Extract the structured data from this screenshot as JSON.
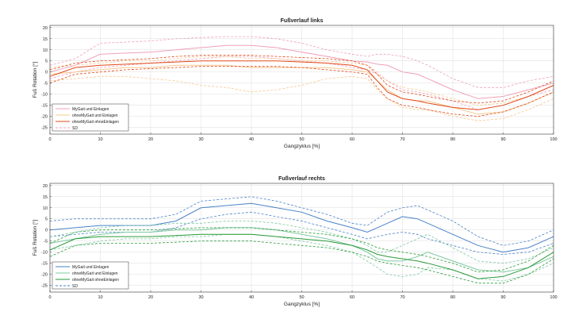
{
  "chart_data": [
    {
      "type": "line",
      "title": "Fußverlauf links",
      "xlabel": "Gangzyklus [%]",
      "ylabel": "Fuß Rotation [°]",
      "xlim": [
        0,
        100
      ],
      "ylim": [
        -28,
        21
      ],
      "xticks": [
        0,
        10,
        20,
        30,
        40,
        50,
        60,
        70,
        80,
        90,
        100
      ],
      "yticks": [
        -25,
        -20,
        -15,
        -10,
        -5,
        0,
        5,
        10,
        15,
        20
      ],
      "grid": true,
      "legend_position": "bottom-left",
      "x": [
        0,
        5,
        10,
        15,
        20,
        25,
        30,
        35,
        40,
        45,
        50,
        55,
        60,
        63,
        65,
        67,
        70,
        73,
        75,
        80,
        85,
        90,
        95,
        100
      ],
      "series": [
        {
          "name": "MyGait und Einlagen",
          "color": "#f0a0b8",
          "values": [
            0,
            3,
            8,
            8.5,
            9,
            10,
            11,
            12,
            12,
            11,
            9,
            7,
            5,
            4.5,
            3.5,
            3,
            0,
            -1,
            -3,
            -8,
            -12,
            -11,
            -8,
            -5
          ],
          "sd_upper": [
            3,
            6,
            13,
            13.5,
            14,
            15,
            15.5,
            16,
            16,
            15,
            13,
            10,
            8,
            7,
            8,
            8,
            7,
            5,
            3,
            -3,
            -7,
            -7,
            -4,
            -2
          ],
          "sd_lower": [
            -3,
            0,
            2,
            3,
            4,
            5,
            6,
            7,
            7,
            6,
            5,
            4,
            2,
            1,
            -1,
            -4,
            -8,
            -9,
            -10,
            -13,
            -17,
            -15,
            -11,
            -8
          ]
        },
        {
          "name": "ohneMyGait und Einlagen",
          "color": "#f5c890",
          "values": [
            -1,
            0,
            1,
            2,
            2,
            3,
            3,
            3,
            2,
            2,
            2,
            2,
            1,
            0,
            -4,
            -8,
            -12,
            -13,
            -13,
            -16,
            -19,
            -18,
            -14,
            -9
          ],
          "sd_upper": [
            2,
            3,
            4,
            5,
            5,
            6,
            7,
            7,
            6,
            6,
            5,
            5,
            4,
            3,
            0,
            -4,
            -7,
            -8,
            -9,
            -12,
            -15,
            -14,
            -11,
            -6
          ],
          "sd_lower": [
            -4,
            -3,
            -2,
            -2,
            -3,
            -4,
            -6,
            -7,
            -9,
            -8,
            -6,
            -3,
            -2,
            -3,
            -8,
            -12,
            -16,
            -17,
            -17,
            -20,
            -22,
            -21,
            -17,
            -12
          ]
        },
        {
          "name": "ohneMyGait ohneEinlagen",
          "color": "#e04a1a",
          "values": [
            -2,
            2,
            3,
            3.5,
            4,
            4.5,
            5,
            5,
            5,
            5,
            4.5,
            4,
            3,
            1,
            -4,
            -9,
            -12,
            -13,
            -14,
            -16,
            -17,
            -15,
            -11,
            -6
          ],
          "sd_upper": [
            1,
            4,
            5,
            5.5,
            6,
            7,
            7.5,
            7.5,
            7.5,
            7,
            6.5,
            6,
            5,
            3,
            -1,
            -6,
            -9,
            -10,
            -11,
            -13,
            -14,
            -13,
            -9,
            -4
          ],
          "sd_lower": [
            -5,
            -1,
            0,
            1,
            1.5,
            2,
            2.5,
            2.5,
            2.5,
            2.5,
            2,
            1,
            0,
            -1,
            -7,
            -12,
            -15,
            -16,
            -17,
            -19,
            -20,
            -18,
            -14,
            -9
          ]
        }
      ],
      "legend_entries": [
        "MyGait und Einlagen",
        "ohneMyGait und Einlagen",
        "ohneMyGait ohneEinlagen",
        "SD"
      ]
    },
    {
      "type": "line",
      "title": "Fußverlauf rechts",
      "xlabel": "Gangzyklus [%]",
      "ylabel": "Fuß Rotation [°]",
      "xlim": [
        0,
        100
      ],
      "ylim": [
        -28,
        21
      ],
      "xticks": [
        0,
        10,
        20,
        30,
        40,
        50,
        60,
        70,
        80,
        90,
        100
      ],
      "yticks": [
        -25,
        -20,
        -15,
        -10,
        -5,
        0,
        5,
        10,
        15,
        20
      ],
      "grid": true,
      "legend_position": "bottom-left",
      "x": [
        0,
        5,
        10,
        15,
        20,
        25,
        30,
        35,
        40,
        45,
        50,
        55,
        60,
        63,
        65,
        67,
        70,
        73,
        75,
        80,
        85,
        90,
        95,
        100
      ],
      "series": [
        {
          "name": "MyGait und Einlagen",
          "color": "#4a82c8",
          "values": [
            0,
            1,
            2,
            2,
            2,
            4,
            10,
            11,
            12,
            10,
            8,
            4,
            1,
            -1,
            1,
            3,
            6,
            5,
            3,
            -2,
            -7,
            -10,
            -8,
            -3
          ],
          "sd_upper": [
            4,
            5,
            5,
            5,
            5,
            7,
            13,
            14,
            15,
            13,
            10,
            7,
            3,
            2,
            5,
            8,
            10,
            11,
            9,
            4,
            -3,
            -7,
            -5,
            0
          ],
          "sd_lower": [
            -3,
            -2,
            -1,
            -1,
            -1,
            1,
            5,
            7,
            8,
            6,
            4,
            1,
            -2,
            -4,
            -3,
            -2,
            -1,
            -2,
            -4,
            -7,
            -10,
            -11,
            -10,
            -6
          ]
        },
        {
          "name": "ohneMyGait und Einlagen",
          "color": "#7cc8a0",
          "values": [
            -6,
            -4,
            -2,
            -1,
            -1,
            0,
            0,
            1,
            1,
            0,
            -2,
            -4,
            -7,
            -10,
            -13,
            -14,
            -14,
            -12,
            -10,
            -14,
            -18,
            -19,
            -17,
            -12
          ],
          "sd_upper": [
            -3,
            -1,
            1,
            2,
            2,
            3,
            3,
            4,
            4,
            3,
            1,
            -1,
            -4,
            -7,
            -10,
            -10,
            -7,
            -4,
            -2,
            -8,
            -14,
            -15,
            -13,
            -8
          ],
          "sd_lower": [
            -9,
            -7,
            -5,
            -4,
            -4,
            -3,
            -3,
            -2,
            -2,
            -3,
            -5,
            -7,
            -10,
            -14,
            -17,
            -20,
            -21,
            -20,
            -17,
            -18,
            -22,
            -23,
            -20,
            -15
          ]
        },
        {
          "name": "ohneMyGait ohneEinlagen",
          "color": "#2a9a3a",
          "values": [
            -9,
            -4,
            -3,
            -3,
            -3,
            -2.5,
            -2,
            -2,
            -2,
            -3,
            -4,
            -5,
            -7,
            -9,
            -11,
            -12,
            -13,
            -14,
            -15,
            -18,
            -22,
            -21,
            -17,
            -10
          ],
          "sd_upper": [
            -6,
            -1,
            0,
            0,
            0,
            0.5,
            1,
            1,
            1,
            0,
            -1,
            -2,
            -4,
            -6,
            -8,
            -9,
            -10,
            -11,
            -12,
            -15,
            -19,
            -18,
            -14,
            -7
          ],
          "sd_lower": [
            -12,
            -7,
            -6,
            -6,
            -6,
            -5.5,
            -5,
            -5,
            -5,
            -6,
            -7,
            -8,
            -10,
            -12,
            -14,
            -15,
            -16,
            -17,
            -18,
            -21,
            -24,
            -24,
            -20,
            -13
          ]
        }
      ],
      "legend_entries": [
        "MyGait und Einlagen",
        "ohneMyGait und Einlagen",
        "ohneMyGait ohneEinlagen",
        "SD"
      ]
    }
  ]
}
